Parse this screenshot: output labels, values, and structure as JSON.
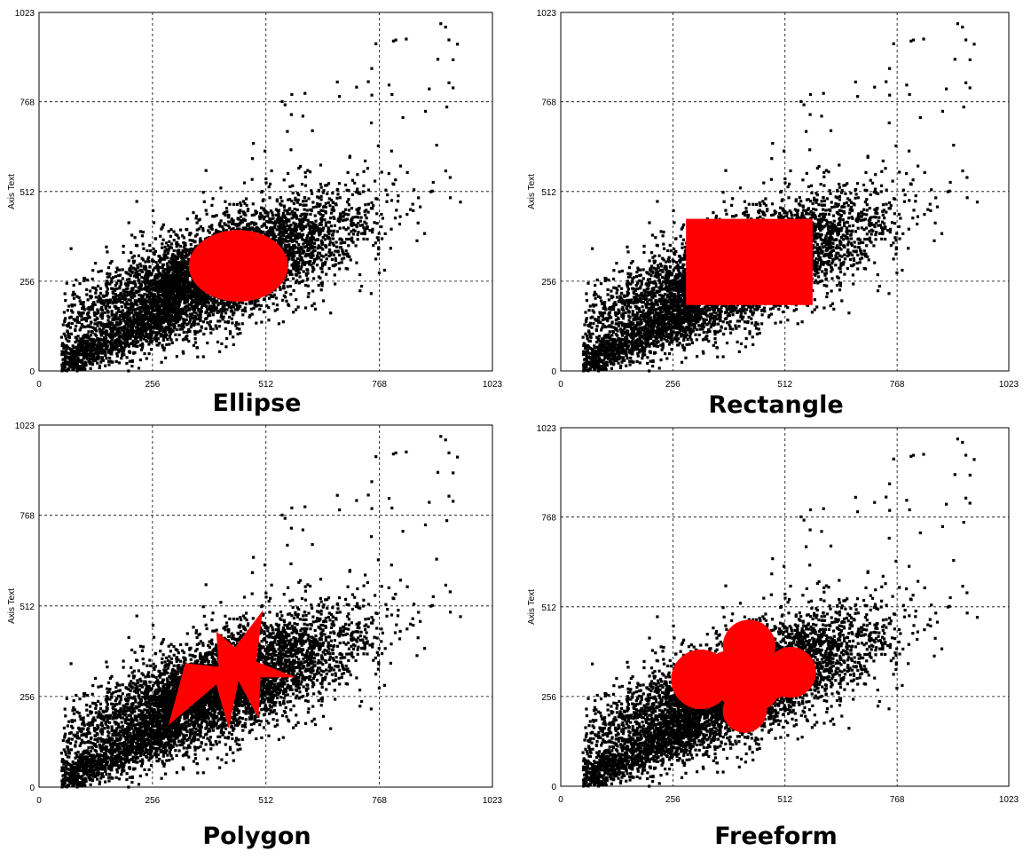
{
  "colors": {
    "background": "#ffffff",
    "points": "#000000",
    "region": "#ff0000"
  },
  "chart_data": [
    {
      "type": "scatter",
      "title": "Ellipse",
      "ylabel": "Axis Text",
      "xlim": [
        0,
        1023
      ],
      "ylim": [
        0,
        1023
      ],
      "xticks": [
        "0",
        "256",
        "512",
        "768",
        "1023"
      ],
      "yticks": [
        "0",
        "256",
        "512",
        "768",
        "1023"
      ],
      "grid": true,
      "cloud": {
        "center": [
          400,
          280
        ],
        "spread": [
          170,
          115
        ],
        "tilt_deg": 28
      },
      "region": {
        "shape": "ellipse",
        "center": [
          450,
          300
        ],
        "radii": [
          112,
          146
        ]
      }
    },
    {
      "type": "scatter",
      "title": "Rectangle",
      "ylabel": "Axis Text",
      "xlim": [
        0,
        1023
      ],
      "ylim": [
        0,
        1023
      ],
      "xticks": [
        "0",
        "256",
        "512",
        "768",
        "1023"
      ],
      "yticks": [
        "0",
        "256",
        "512",
        "768",
        "1023"
      ],
      "grid": true,
      "cloud": {
        "center": [
          400,
          280
        ],
        "spread": [
          170,
          115
        ],
        "tilt_deg": 28
      },
      "region": {
        "shape": "rectangle",
        "x_range": [
          286,
          575
        ],
        "y_range": [
          188,
          434
        ]
      }
    },
    {
      "type": "scatter",
      "title": "Polygon",
      "ylabel": "Axis Text",
      "xlim": [
        0,
        1023
      ],
      "ylim": [
        0,
        1023
      ],
      "xticks": [
        "0",
        "256",
        "512",
        "768",
        "1023"
      ],
      "yticks": [
        "0",
        "256",
        "512",
        "768",
        "1023"
      ],
      "grid": true,
      "cloud": {
        "center": [
          400,
          280
        ],
        "spread": [
          170,
          115
        ],
        "tilt_deg": 28
      },
      "region": {
        "shape": "polygon",
        "points": [
          [
            292,
            175
          ],
          [
            330,
            350
          ],
          [
            405,
            340
          ],
          [
            400,
            440
          ],
          [
            442,
            395
          ],
          [
            505,
            500
          ],
          [
            490,
            355
          ],
          [
            580,
            310
          ],
          [
            500,
            310
          ],
          [
            495,
            195
          ],
          [
            450,
            300
          ],
          [
            428,
            165
          ],
          [
            400,
            290
          ]
        ]
      }
    },
    {
      "type": "scatter",
      "title": "Freeform",
      "ylabel": "Axis Text",
      "xlim": [
        0,
        1023
      ],
      "ylim": [
        0,
        1023
      ],
      "xticks": [
        "0",
        "256",
        "512",
        "768",
        "1023"
      ],
      "yticks": [
        "0",
        "256",
        "512",
        "768",
        "1023"
      ],
      "grid": true,
      "cloud": {
        "center": [
          400,
          280
        ],
        "spread": [
          170,
          115
        ],
        "tilt_deg": 28
      },
      "region": {
        "shape": "freeform",
        "blobs": [
          [
            430,
            400,
            60
          ],
          [
            430,
            300,
            75
          ],
          [
            320,
            305,
            68
          ],
          [
            525,
            325,
            58
          ],
          [
            420,
            215,
            50
          ],
          [
            380,
            330,
            45
          ],
          [
            480,
            310,
            50
          ]
        ]
      }
    }
  ]
}
